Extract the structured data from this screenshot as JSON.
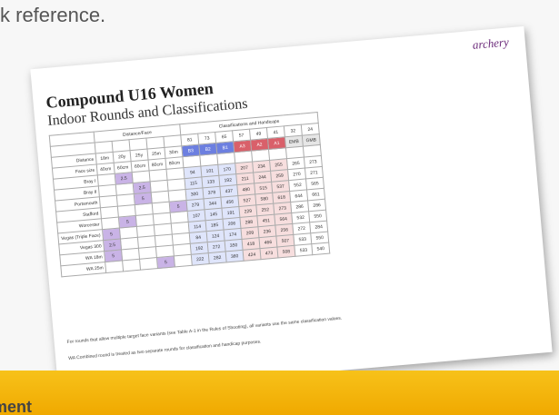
{
  "header_text": "k reference.",
  "banner_text": "ment",
  "document": {
    "logo": "archery",
    "title": "Compound U16 Women",
    "subtitle": "Indoor Rounds and Classifications",
    "distance_header": "Distance/Face",
    "class_header": "Classifications and Handicaps",
    "distance_label": "Distance",
    "face_label": "Face size",
    "distances": [
      "18m",
      "20y",
      "25y",
      "25m",
      "30m"
    ],
    "faces": [
      "40cm",
      "60cm",
      "60cm",
      "80cm",
      "80cm"
    ],
    "handicaps": [
      "81",
      "73",
      "65",
      "57",
      "49",
      "41",
      "32",
      "24"
    ],
    "classes": [
      "B3",
      "B2",
      "B1",
      "A3",
      "A2",
      "A1",
      "EMB",
      "GMB"
    ],
    "rounds": [
      {
        "name": "Bray I",
        "cells": [
          null,
          "2.5",
          null,
          null,
          null
        ],
        "scores": [
          "94",
          "101",
          "170",
          "207",
          "234",
          "255",
          "265",
          "273"
        ]
      },
      {
        "name": "Bray II",
        "cells": [
          null,
          null,
          "2.5",
          null,
          null
        ],
        "scores": [
          "115",
          "133",
          "192",
          "211",
          "244",
          "259",
          "270",
          "271"
        ]
      },
      {
        "name": "Portsmouth",
        "cells": [
          null,
          null,
          "5",
          null,
          null
        ],
        "scores": [
          "300",
          "378",
          "437",
          "480",
          "515",
          "537",
          "552",
          "565"
        ]
      },
      {
        "name": "Stafford",
        "cells": [
          null,
          null,
          null,
          null,
          "5"
        ],
        "scores": [
          "279",
          "344",
          "456",
          "527",
          "580",
          "618",
          "644",
          "661"
        ]
      },
      {
        "name": "Worcester",
        "cells": [
          null,
          "5",
          null,
          null,
          null
        ],
        "scores": [
          "107",
          "145",
          "191",
          "229",
          "252",
          "273",
          "286",
          "286"
        ]
      },
      {
        "name": "Vegas (Triple Face)",
        "cells": [
          "5",
          null,
          null,
          null,
          null
        ],
        "scores": [
          "114",
          "185",
          "206",
          "288",
          "451",
          "564",
          "532",
          "550"
        ]
      },
      {
        "name": "Vegas 300",
        "cells": [
          "2.5",
          null,
          null,
          null,
          null
        ],
        "scores": [
          "84",
          "124",
          "174",
          "209",
          "236",
          "256",
          "272",
          "284"
        ]
      },
      {
        "name": "WA 18m",
        "cells": [
          "5",
          null,
          null,
          null,
          null
        ],
        "scores": [
          "192",
          "272",
          "350",
          "418",
          "466",
          "507",
          "533",
          "550"
        ]
      },
      {
        "name": "WA 25m",
        "cells": [
          null,
          null,
          null,
          "5",
          null
        ],
        "scores": [
          "222",
          "282",
          "360",
          "424",
          "473",
          "508",
          "533",
          "540"
        ]
      }
    ],
    "notes": [
      "For rounds that allow multiple target face variants (see Table A-1 in the Rules of Shooting), all variants use the same classification values.",
      "WA Combined round is treated as two separate rounds for classification and handicap purposes."
    ]
  }
}
